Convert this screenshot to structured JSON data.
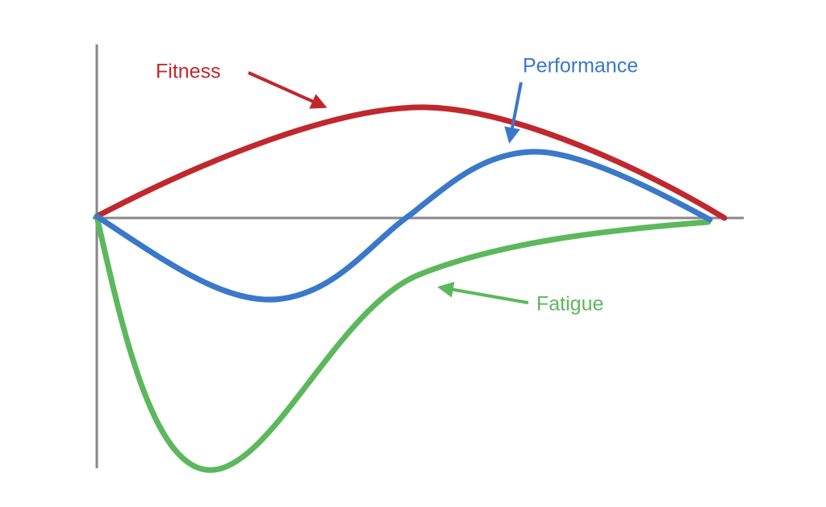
{
  "labels": {
    "fitness": "Fitness",
    "performance": "Performance",
    "fatigue": "Fatigue"
  }
}
